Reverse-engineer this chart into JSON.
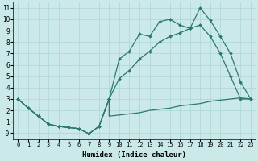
{
  "xlabel": "Humidex (Indice chaleur)",
  "xlim": [
    -0.5,
    23.5
  ],
  "ylim": [
    -0.5,
    11.5
  ],
  "xticks": [
    0,
    1,
    2,
    3,
    4,
    5,
    6,
    7,
    8,
    9,
    10,
    11,
    12,
    13,
    14,
    15,
    16,
    17,
    18,
    19,
    20,
    21,
    22,
    23
  ],
  "yticks": [
    0,
    1,
    2,
    3,
    4,
    5,
    6,
    7,
    8,
    9,
    10,
    11
  ],
  "ytick_labels": [
    "-0",
    "1",
    "2",
    "3",
    "4",
    "5",
    "6",
    "7",
    "8",
    "9",
    "10",
    "11"
  ],
  "background_color": "#cce9e9",
  "grid_color": "#aad4d4",
  "line_color": "#2a7a6a",
  "shared_x": [
    0,
    1,
    2,
    3,
    4,
    5,
    6,
    7,
    8,
    9
  ],
  "shared_y": [
    3.0,
    2.2,
    1.5,
    0.8,
    0.6,
    0.5,
    0.4,
    -0.05,
    0.6,
    3.0
  ],
  "line1_x": [
    9,
    10,
    11,
    12,
    13,
    14,
    15,
    16,
    17,
    18,
    19,
    20,
    21,
    22,
    23
  ],
  "line1_y": [
    3.0,
    6.5,
    7.2,
    8.7,
    8.5,
    9.8,
    10.0,
    9.5,
    9.2,
    11.0,
    9.9,
    8.5,
    7.0,
    4.5,
    3.0
  ],
  "line2_x": [
    9,
    10,
    11,
    12,
    13,
    14,
    15,
    16,
    17,
    18,
    19,
    20,
    21,
    22,
    23
  ],
  "line2_y": [
    3.0,
    4.8,
    5.5,
    6.5,
    7.2,
    8.0,
    8.5,
    8.8,
    9.2,
    9.5,
    8.5,
    7.0,
    5.0,
    3.0,
    3.0
  ],
  "line3_x": [
    9,
    10,
    11,
    12,
    13,
    14,
    15,
    16,
    17,
    18,
    19,
    20,
    21,
    22,
    23
  ],
  "line3_y": [
    1.5,
    1.6,
    1.7,
    1.8,
    2.0,
    2.1,
    2.2,
    2.4,
    2.5,
    2.6,
    2.8,
    2.9,
    3.0,
    3.1,
    3.0
  ]
}
